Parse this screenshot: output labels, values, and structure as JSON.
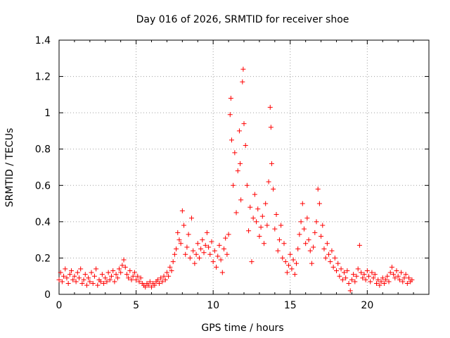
{
  "chart_data": {
    "type": "scatter",
    "title": "Day 016 of 2026, SRMTID for receiver shoe",
    "xlabel": "GPS time / hours",
    "ylabel": "SRMTID / TECUs",
    "xlim": [
      0,
      24
    ],
    "ylim": [
      0,
      1.4
    ],
    "x_ticks": [
      0,
      5,
      10,
      15,
      20
    ],
    "y_ticks": [
      0,
      0.2,
      0.4,
      0.6,
      0.8,
      1,
      1.2,
      1.4
    ],
    "x_tick_labels": [
      "0",
      "5",
      "10",
      "15",
      "20"
    ],
    "y_tick_labels": [
      "0",
      "0.2",
      "0.4",
      "0.6",
      "0.8",
      "1",
      "1.2",
      "1.4"
    ],
    "grid": true,
    "marker": "+",
    "color": "#ff0000",
    "series": [
      {
        "name": "SRMTID",
        "points": [
          [
            0.0,
            0.08
          ],
          [
            0.1,
            0.12
          ],
          [
            0.2,
            0.07
          ],
          [
            0.3,
            0.1
          ],
          [
            0.4,
            0.14
          ],
          [
            0.5,
            0.09
          ],
          [
            0.6,
            0.06
          ],
          [
            0.7,
            0.11
          ],
          [
            0.8,
            0.13
          ],
          [
            0.9,
            0.08
          ],
          [
            1.0,
            0.1
          ],
          [
            1.1,
            0.07
          ],
          [
            1.2,
            0.12
          ],
          [
            1.3,
            0.09
          ],
          [
            1.4,
            0.14
          ],
          [
            1.5,
            0.06
          ],
          [
            1.6,
            0.08
          ],
          [
            1.7,
            0.11
          ],
          [
            1.8,
            0.05
          ],
          [
            1.9,
            0.09
          ],
          [
            2.0,
            0.07
          ],
          [
            2.1,
            0.12
          ],
          [
            2.2,
            0.06
          ],
          [
            2.3,
            0.1
          ],
          [
            2.4,
            0.14
          ],
          [
            2.5,
            0.05
          ],
          [
            2.6,
            0.08
          ],
          [
            2.7,
            0.07
          ],
          [
            2.8,
            0.11
          ],
          [
            2.9,
            0.06
          ],
          [
            3.0,
            0.09
          ],
          [
            3.1,
            0.07
          ],
          [
            3.2,
            0.12
          ],
          [
            3.3,
            0.08
          ],
          [
            3.4,
            0.1
          ],
          [
            3.5,
            0.13
          ],
          [
            3.6,
            0.07
          ],
          [
            3.7,
            0.11
          ],
          [
            3.8,
            0.09
          ],
          [
            3.9,
            0.14
          ],
          [
            4.0,
            0.12
          ],
          [
            4.1,
            0.16
          ],
          [
            4.2,
            0.19
          ],
          [
            4.3,
            0.15
          ],
          [
            4.4,
            0.11
          ],
          [
            4.5,
            0.09
          ],
          [
            4.6,
            0.13
          ],
          [
            4.7,
            0.08
          ],
          [
            4.8,
            0.1
          ],
          [
            4.9,
            0.12
          ],
          [
            5.0,
            0.08
          ],
          [
            5.1,
            0.1
          ],
          [
            5.2,
            0.07
          ],
          [
            5.3,
            0.09
          ],
          [
            5.4,
            0.06
          ],
          [
            5.5,
            0.05
          ],
          [
            5.6,
            0.04
          ],
          [
            5.7,
            0.06
          ],
          [
            5.8,
            0.05
          ],
          [
            5.9,
            0.07
          ],
          [
            6.0,
            0.04
          ],
          [
            6.1,
            0.06
          ],
          [
            6.2,
            0.05
          ],
          [
            6.3,
            0.07
          ],
          [
            6.4,
            0.08
          ],
          [
            6.5,
            0.06
          ],
          [
            6.6,
            0.09
          ],
          [
            6.7,
            0.07
          ],
          [
            6.8,
            0.1
          ],
          [
            6.9,
            0.08
          ],
          [
            7.0,
            0.12
          ],
          [
            7.1,
            0.1
          ],
          [
            7.2,
            0.15
          ],
          [
            7.3,
            0.13
          ],
          [
            7.4,
            0.18
          ],
          [
            7.5,
            0.22
          ],
          [
            7.6,
            0.25
          ],
          [
            7.7,
            0.34
          ],
          [
            7.8,
            0.3
          ],
          [
            7.9,
            0.28
          ],
          [
            8.0,
            0.46
          ],
          [
            8.1,
            0.38
          ],
          [
            8.2,
            0.22
          ],
          [
            8.3,
            0.26
          ],
          [
            8.4,
            0.33
          ],
          [
            8.5,
            0.2
          ],
          [
            8.6,
            0.42
          ],
          [
            8.7,
            0.24
          ],
          [
            8.8,
            0.17
          ],
          [
            8.9,
            0.22
          ],
          [
            9.0,
            0.28
          ],
          [
            9.1,
            0.2
          ],
          [
            9.2,
            0.25
          ],
          [
            9.3,
            0.3
          ],
          [
            9.4,
            0.23
          ],
          [
            9.5,
            0.27
          ],
          [
            9.6,
            0.34
          ],
          [
            9.7,
            0.26
          ],
          [
            9.8,
            0.22
          ],
          [
            9.9,
            0.29
          ],
          [
            10.0,
            0.18
          ],
          [
            10.1,
            0.24
          ],
          [
            10.2,
            0.15
          ],
          [
            10.3,
            0.21
          ],
          [
            10.4,
            0.27
          ],
          [
            10.5,
            0.19
          ],
          [
            10.6,
            0.12
          ],
          [
            10.7,
            0.25
          ],
          [
            10.8,
            0.31
          ],
          [
            10.9,
            0.22
          ],
          [
            11.0,
            0.33
          ],
          [
            11.1,
            0.99
          ],
          [
            11.15,
            1.08
          ],
          [
            11.2,
            0.85
          ],
          [
            11.3,
            0.6
          ],
          [
            11.4,
            0.78
          ],
          [
            11.5,
            0.45
          ],
          [
            11.6,
            0.68
          ],
          [
            11.7,
            0.9
          ],
          [
            11.75,
            0.72
          ],
          [
            11.8,
            0.52
          ],
          [
            11.9,
            1.17
          ],
          [
            11.95,
            1.24
          ],
          [
            12.0,
            0.94
          ],
          [
            12.1,
            0.82
          ],
          [
            12.2,
            0.6
          ],
          [
            12.3,
            0.35
          ],
          [
            12.4,
            0.48
          ],
          [
            12.5,
            0.18
          ],
          [
            12.6,
            0.42
          ],
          [
            12.7,
            0.55
          ],
          [
            12.8,
            0.4
          ],
          [
            12.9,
            0.47
          ],
          [
            13.0,
            0.32
          ],
          [
            13.1,
            0.37
          ],
          [
            13.2,
            0.43
          ],
          [
            13.3,
            0.28
          ],
          [
            13.4,
            0.5
          ],
          [
            13.5,
            0.38
          ],
          [
            13.6,
            0.62
          ],
          [
            13.7,
            1.03
          ],
          [
            13.75,
            0.92
          ],
          [
            13.8,
            0.72
          ],
          [
            13.9,
            0.58
          ],
          [
            14.0,
            0.36
          ],
          [
            14.1,
            0.44
          ],
          [
            14.2,
            0.24
          ],
          [
            14.3,
            0.3
          ],
          [
            14.4,
            0.38
          ],
          [
            14.5,
            0.2
          ],
          [
            14.6,
            0.28
          ],
          [
            14.7,
            0.18
          ],
          [
            14.8,
            0.12
          ],
          [
            14.9,
            0.16
          ],
          [
            15.0,
            0.22
          ],
          [
            15.1,
            0.14
          ],
          [
            15.2,
            0.19
          ],
          [
            15.3,
            0.11
          ],
          [
            15.4,
            0.17
          ],
          [
            15.5,
            0.25
          ],
          [
            15.6,
            0.33
          ],
          [
            15.7,
            0.4
          ],
          [
            15.8,
            0.5
          ],
          [
            15.9,
            0.36
          ],
          [
            16.0,
            0.28
          ],
          [
            16.1,
            0.42
          ],
          [
            16.2,
            0.3
          ],
          [
            16.3,
            0.24
          ],
          [
            16.4,
            0.17
          ],
          [
            16.5,
            0.26
          ],
          [
            16.6,
            0.34
          ],
          [
            16.7,
            0.4
          ],
          [
            16.8,
            0.58
          ],
          [
            16.9,
            0.5
          ],
          [
            17.0,
            0.32
          ],
          [
            17.1,
            0.38
          ],
          [
            17.2,
            0.25
          ],
          [
            17.3,
            0.2
          ],
          [
            17.4,
            0.28
          ],
          [
            17.5,
            0.22
          ],
          [
            17.6,
            0.18
          ],
          [
            17.7,
            0.24
          ],
          [
            17.8,
            0.15
          ],
          [
            17.9,
            0.2
          ],
          [
            18.0,
            0.13
          ],
          [
            18.1,
            0.17
          ],
          [
            18.2,
            0.1
          ],
          [
            18.3,
            0.14
          ],
          [
            18.4,
            0.08
          ],
          [
            18.5,
            0.12
          ],
          [
            18.6,
            0.09
          ],
          [
            18.7,
            0.13
          ],
          [
            18.8,
            0.06
          ],
          [
            18.9,
            0.02
          ],
          [
            19.0,
            0.08
          ],
          [
            19.1,
            0.11
          ],
          [
            19.2,
            0.07
          ],
          [
            19.3,
            0.1
          ],
          [
            19.4,
            0.14
          ],
          [
            19.5,
            0.27
          ],
          [
            19.6,
            0.12
          ],
          [
            19.7,
            0.09
          ],
          [
            19.8,
            0.11
          ],
          [
            19.9,
            0.08
          ],
          [
            20.0,
            0.13
          ],
          [
            20.1,
            0.1
          ],
          [
            20.2,
            0.07
          ],
          [
            20.3,
            0.12
          ],
          [
            20.4,
            0.09
          ],
          [
            20.5,
            0.11
          ],
          [
            20.6,
            0.06
          ],
          [
            20.7,
            0.08
          ],
          [
            20.8,
            0.05
          ],
          [
            20.9,
            0.07
          ],
          [
            21.0,
            0.09
          ],
          [
            21.1,
            0.06
          ],
          [
            21.2,
            0.08
          ],
          [
            21.3,
            0.1
          ],
          [
            21.4,
            0.07
          ],
          [
            21.5,
            0.12
          ],
          [
            21.6,
            0.15
          ],
          [
            21.7,
            0.11
          ],
          [
            21.8,
            0.09
          ],
          [
            21.9,
            0.13
          ],
          [
            22.0,
            0.1
          ],
          [
            22.1,
            0.08
          ],
          [
            22.2,
            0.12
          ],
          [
            22.3,
            0.07
          ],
          [
            22.4,
            0.09
          ],
          [
            22.5,
            0.11
          ],
          [
            22.6,
            0.06
          ],
          [
            22.7,
            0.09
          ],
          [
            22.8,
            0.07
          ],
          [
            22.9,
            0.08
          ]
        ]
      }
    ]
  }
}
